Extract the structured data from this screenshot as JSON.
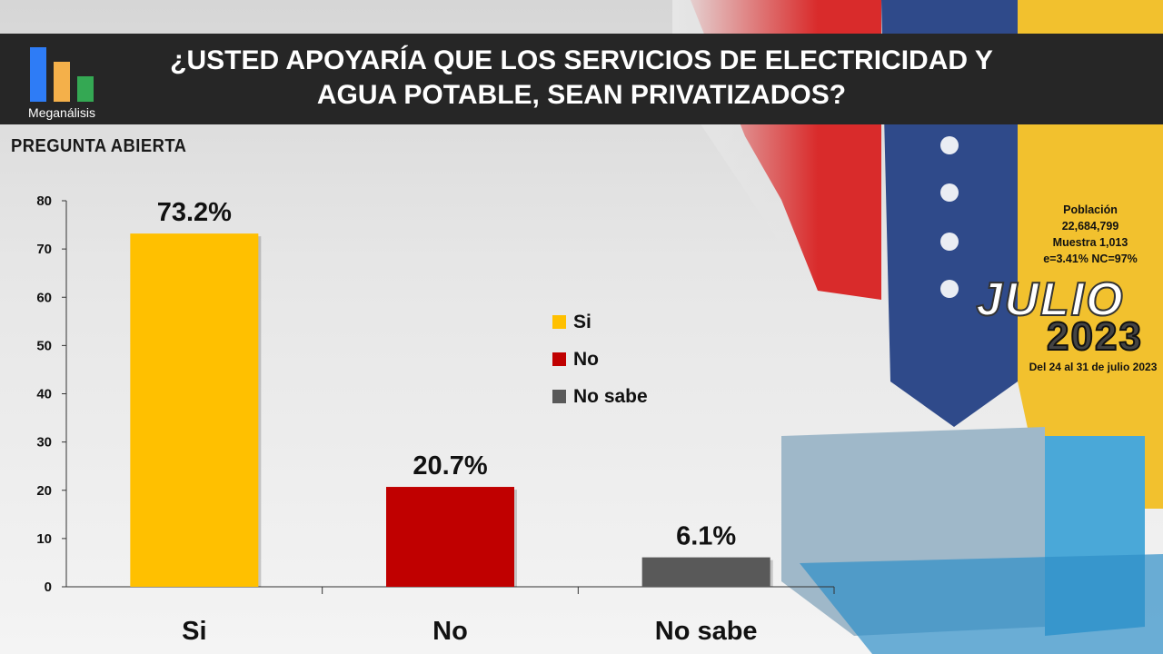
{
  "header": {
    "title_line1": "¿USTED APOYARÍA QUE LOS SERVICIOS DE ELECTRICIDAD Y",
    "title_line2": "AGUA POTABLE, SEAN PRIVATIZADOS?",
    "logo_text": "Meganálisis"
  },
  "subtitle": "PREGUNTA  ABIERTA",
  "info": {
    "poblacion_label": "Población",
    "poblacion_value": "22,684,799",
    "muestra": "Muestra 1,013",
    "error": "e=3.41%  NC=97%",
    "month": "JULIO",
    "year": "2023",
    "dates": "Del 24 al 31 de julio 2023"
  },
  "colors": {
    "si": "#FFC000",
    "no": "#C00000",
    "no_sabe": "#595959",
    "header_bg": "#262626",
    "logo_blue": "#2E7CF6",
    "logo_orange": "#F4B04A",
    "logo_green": "#34A853"
  },
  "chart_data": {
    "type": "bar",
    "categories": [
      "Si",
      "No",
      "No sabe"
    ],
    "values": [
      73.2,
      20.7,
      6.1
    ],
    "value_labels": [
      "73.2%",
      "20.7%",
      "6.1%"
    ],
    "colors": [
      "#FFC000",
      "#C00000",
      "#595959"
    ],
    "ylim": [
      0,
      80
    ],
    "yticks": [
      0,
      10,
      20,
      30,
      40,
      50,
      60,
      70,
      80
    ],
    "legend": [
      "Si",
      "No",
      "No sabe"
    ],
    "legend_position": "center-right",
    "grid": false
  }
}
